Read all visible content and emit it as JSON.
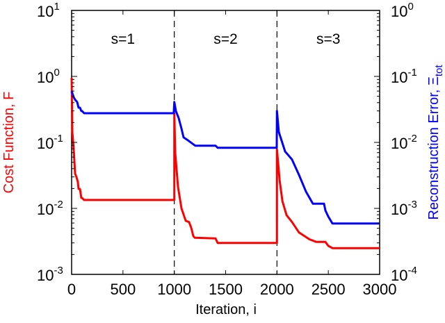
{
  "chart_data": {
    "type": "line",
    "title": "",
    "xlabel": "Iteration, i",
    "ylabel": "Cost Function, F",
    "y2label": "Reconstruction Error, Ξtot",
    "y2label_main": "Reconstruction Error, Ξ",
    "y2label_sub": "tot",
    "xlim": [
      0,
      3000
    ],
    "ylim": [
      0.001,
      10
    ],
    "y2lim": [
      0.0001,
      1
    ],
    "yscale": "log",
    "y2scale": "log",
    "grid": false,
    "legend": null,
    "x_ticks": [
      0,
      500,
      1000,
      1500,
      2000,
      2500,
      3000
    ],
    "x_tick_labels": [
      "0",
      "500",
      "1000",
      "1500",
      "2000",
      "2500",
      "3000"
    ],
    "y_ticks": [
      {
        "base": "10",
        "exp": "1",
        "value": 10
      },
      {
        "base": "10",
        "exp": "0",
        "value": 1
      },
      {
        "base": "10",
        "exp": "-1",
        "value": 0.1
      },
      {
        "base": "10",
        "exp": "-2",
        "value": 0.01
      },
      {
        "base": "10",
        "exp": "-3",
        "value": 0.001
      }
    ],
    "y2_ticks": [
      {
        "base": "10",
        "exp": "0",
        "value": 1
      },
      {
        "base": "10",
        "exp": "-1",
        "value": 0.1
      },
      {
        "base": "10",
        "exp": "-2",
        "value": 0.01
      },
      {
        "base": "10",
        "exp": "-3",
        "value": 0.001
      },
      {
        "base": "10",
        "exp": "-4",
        "value": 0.0001
      }
    ],
    "annotations": [
      {
        "text": "s=1",
        "x": 500
      },
      {
        "text": "s=2",
        "x": 1500
      },
      {
        "text": "s=3",
        "x": 2500
      }
    ],
    "vlines": [
      1000,
      2000
    ],
    "colors": {
      "cost": "#ff0000",
      "error": "#0000ff",
      "axis": "#000000"
    },
    "series": [
      {
        "name": "Cost Function, F",
        "axis": "left",
        "color": "#ff0000",
        "x": [
          0,
          7,
          20,
          34,
          47,
          61,
          68,
          81,
          95,
          102,
          122,
          995,
          1000,
          1000,
          1009,
          1036,
          1070,
          1111,
          1144,
          1165,
          1185,
          1199,
          1402,
          1422,
          1998,
          2000,
          2000,
          2026,
          2053,
          2093,
          2147,
          2215,
          2316,
          2384,
          2472,
          2500,
          2540,
          3000
        ],
        "values": [
          0.953,
          0.144,
          0.0785,
          0.0336,
          0.03,
          0.0251,
          0.0197,
          0.0197,
          0.0144,
          0.0144,
          0.0134,
          0.0134,
          0.0134,
          0.275,
          0.0695,
          0.0212,
          0.01,
          0.0065,
          0.0062,
          0.0051,
          0.0038,
          0.0036,
          0.0035,
          0.003,
          0.003,
          0.003,
          0.0785,
          0.0265,
          0.0128,
          0.0079,
          0.0062,
          0.0043,
          0.0034,
          0.0031,
          0.0031,
          0.0027,
          0.0025,
          0.0025
        ]
      },
      {
        "name": "Reconstruction Error, Ξtot",
        "axis": "right",
        "color": "#0000ff",
        "x": [
          0,
          20,
          34,
          54,
          68,
          81,
          95,
          102,
          122,
          995,
          1000,
          1016,
          1043,
          1070,
          1090,
          1131,
          1205,
          1402,
          1422,
          1998,
          2000,
          2018,
          2079,
          2147,
          2215,
          2282,
          2350,
          2458,
          2472,
          2500,
          2540,
          3000
        ],
        "values": [
          0.06,
          0.0483,
          0.0445,
          0.0408,
          0.0336,
          0.0336,
          0.0298,
          0.0298,
          0.0277,
          0.0277,
          0.041,
          0.0298,
          0.0233,
          0.0162,
          0.0119,
          0.0108,
          0.0089,
          0.0089,
          0.0083,
          0.0083,
          0.03,
          0.0144,
          0.0073,
          0.0055,
          0.0032,
          0.0018,
          0.00118,
          0.00118,
          0.00093,
          0.00075,
          0.00059,
          0.00059
        ]
      }
    ]
  }
}
